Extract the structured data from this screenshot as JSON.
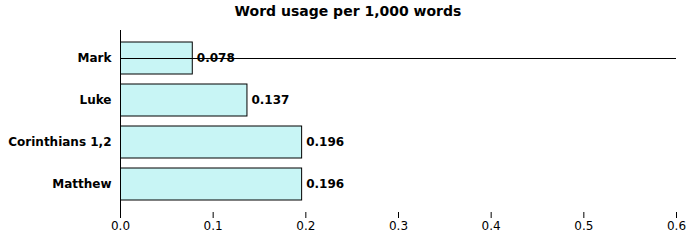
{
  "chart_data": {
    "type": "bar",
    "orientation": "horizontal",
    "title": "Word usage per 1,000 words",
    "categories": [
      "Mark",
      "Luke",
      "Corinthians 1,2",
      "Matthew"
    ],
    "values": [
      0.078,
      0.137,
      0.196,
      0.196
    ],
    "color": "#c8f5f5",
    "xlim": [
      0.0,
      0.6
    ],
    "xticks": [
      {
        "value": 0,
        "label": "0.0"
      },
      0.1,
      0.2,
      0.3,
      0.4,
      0.5,
      0.6
    ],
    "data_labels": true
  }
}
